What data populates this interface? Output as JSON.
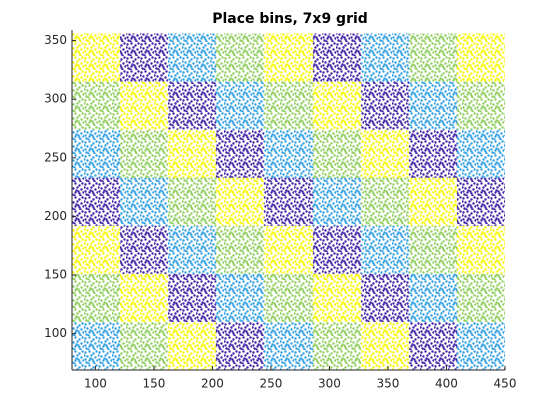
{
  "chart_data": {
    "type": "binned-scatter",
    "title": "Place bins, 7x9 grid",
    "xlim": [
      80,
      450
    ],
    "ylim": [
      69,
      359
    ],
    "xticks": [
      100,
      150,
      200,
      250,
      300,
      350,
      400,
      450
    ],
    "yticks": [
      100,
      150,
      200,
      250,
      300,
      350
    ],
    "xbins": [
      80,
      121,
      162,
      203,
      244,
      286,
      327,
      368,
      409,
      450
    ],
    "ybins": [
      69,
      110,
      151,
      192,
      233,
      274,
      315,
      356
    ],
    "colors": [
      "#f7f700",
      "#8ccd5a",
      "#2f9fe3",
      "#3d1fa3"
    ],
    "cells": [
      [
        2,
        1,
        0,
        3,
        2,
        1,
        0,
        3,
        2
      ],
      [
        1,
        0,
        3,
        2,
        1,
        0,
        3,
        2,
        1
      ],
      [
        0,
        3,
        2,
        1,
        0,
        3,
        2,
        1,
        0
      ],
      [
        3,
        2,
        1,
        0,
        3,
        2,
        1,
        0,
        3
      ],
      [
        2,
        1,
        0,
        3,
        2,
        1,
        0,
        3,
        2
      ],
      [
        1,
        0,
        3,
        2,
        1,
        0,
        3,
        2,
        1
      ],
      [
        0,
        3,
        2,
        1,
        0,
        3,
        2,
        1,
        0
      ]
    ]
  }
}
